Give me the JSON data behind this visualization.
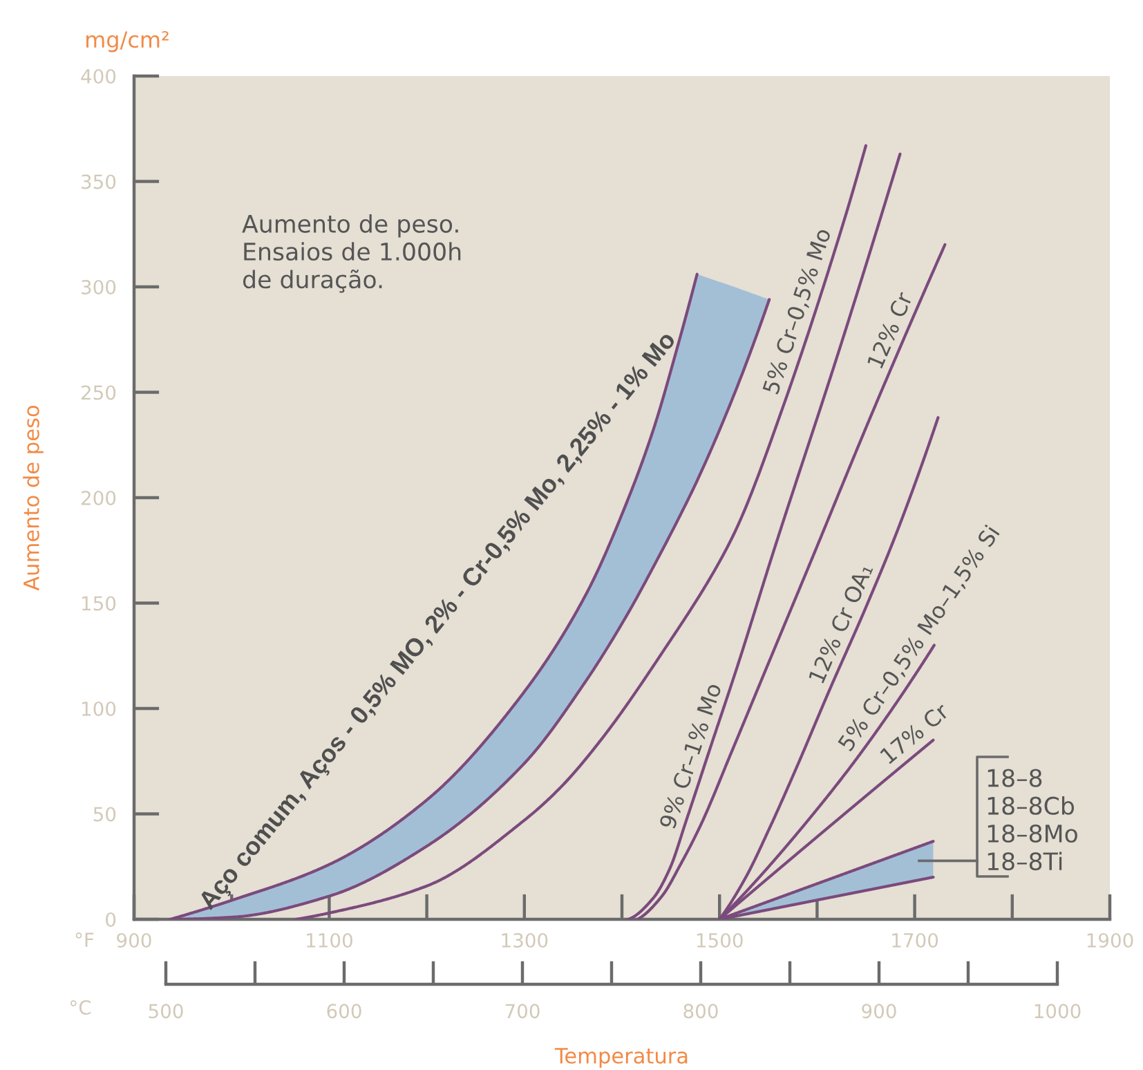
{
  "chart_data": {
    "type": "line",
    "xlabel": "Temperatura",
    "ylabel": "Aumento de peso",
    "xlim": [
      900,
      1900
    ],
    "xticks": [
      900,
      1100,
      1300,
      1500,
      1700,
      1900
    ],
    "x2lim": [
      500,
      1000
    ],
    "x2ticks": [
      500,
      600,
      700,
      800,
      900,
      1000
    ],
    "ylim": [
      0,
      400
    ],
    "yticks": [
      0,
      50,
      100,
      150,
      200,
      250,
      300,
      350,
      400
    ],
    "series": [
      {
        "color": "#7b4a7c",
        "x": [
          937,
          1000,
          1100,
          1201,
          1300,
          1363,
          1406,
          1432,
          1459,
          1477,
          1515,
          1551
        ],
        "values": [
          0,
          9,
          26,
          57,
          108,
          154,
          199,
          232,
          275,
          306,
          null,
          null
        ],
        "lower": [
          0,
          1,
          11,
          35,
          74,
          113,
          145,
          167,
          191,
          208,
          249,
          294
        ],
        "upper": [
          0,
          9,
          26,
          57,
          108,
          154,
          199,
          232,
          275,
          306,
          300,
          294
        ]
      },
      {
        "color": "#7b4a7c",
        "x": [
          937,
          1000,
          1100,
          1201,
          1300,
          1363,
          1406,
          1432,
          1459,
          1477,
          1515,
          1551
        ],
        "values": [
          0,
          1,
          11,
          35,
          74,
          113,
          145,
          167,
          191,
          208,
          249,
          294
        ]
      },
      {
        "color": "#7b4a7c",
        "x": [
          1066,
          1100,
          1201,
          1300,
          1338,
          1380,
          1442,
          1498,
          1519,
          1565,
          1628,
          1650
        ],
        "values": [
          0,
          3,
          16,
          47,
          63,
          86,
          127,
          168,
          187,
          243,
          332,
          367
        ]
      },
      {
        "color": "#7b4a7c",
        "x": [
          1406,
          1432,
          1449,
          1466,
          1491,
          1519,
          1555,
          1624,
          1685
        ],
        "values": [
          0,
          10,
          24,
          47,
          82,
          121,
          174,
          272,
          363
        ]
      },
      {
        "color": "#7b4a7c",
        "x": [
          1416,
          1441,
          1460,
          1481,
          1512,
          1547,
          1592,
          1659,
          1731
        ],
        "values": [
          0,
          11,
          26,
          45,
          79,
          118,
          168,
          243,
          320
        ]
      },
      {
        "color": "#7b4a7c",
        "x": [
          1500,
          1527,
          1551,
          1578,
          1612,
          1650,
          1682,
          1724
        ],
        "values": [
          0,
          20,
          43,
          71,
          108,
          148,
          184,
          238
        ]
      },
      {
        "color": "#7b4a7c",
        "x": [
          1500,
          1533,
          1589,
          1645,
          1720
        ],
        "values": [
          0,
          16,
          46,
          79,
          130
        ]
      },
      {
        "color": "#7b4a7c",
        "x": [
          1500,
          1610,
          1719
        ],
        "values": [
          0,
          43,
          85
        ]
      },
      {
        "color": "#7b4a7c",
        "x": [
          1500,
          1719
        ],
        "values": [
          0,
          37
        ],
        "lower": [
          0,
          20
        ],
        "upper": [
          0,
          37
        ]
      },
      {
        "color": "#7b4a7c",
        "x": [
          1500,
          1719
        ],
        "values": [
          0,
          20
        ]
      }
    ],
    "annotations": [
      "mg/cm²",
      "°F",
      "°C",
      "Aumento de peso.\nEnsaios de 1.000h\nde duração.",
      "18–8\n18–8Cb\n18–8Mo\n18–8Ti",
      {
        "text": "Aço comum, Aços - 0,5% MO, 2% - Cr-0,5% Mo, 2,25% - 1% Mo",
        "x": 1300,
        "y": 108
      },
      {
        "text": "5% Cr–0,5% Mo",
        "x": 1595,
        "y": 286
      },
      {
        "text": "9% Cr–1% Mo",
        "x": 1486,
        "y": 75
      },
      {
        "text": "12% Cr",
        "x": 1690,
        "y": 276
      },
      {
        "text": "12% Cr OA₁",
        "x": 1640,
        "y": 137
      },
      {
        "text": "5% Cr–0,5% Mo–1,5% Si",
        "x": 1718,
        "y": 129
      },
      {
        "text": "17% Cr",
        "x": 1710,
        "y": 82
      }
    ]
  }
}
